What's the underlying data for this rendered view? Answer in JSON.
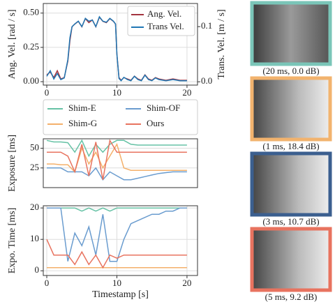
{
  "chart_data": [
    {
      "type": "line",
      "ylabel": "Ang. Vel. [rad / s]",
      "y2label": "Trans. Vel. [m / s]",
      "x": [
        0,
        0.5,
        1,
        1.5,
        2,
        2.5,
        3,
        3.3,
        3.6,
        4,
        4.5,
        5,
        5.5,
        6,
        6.5,
        7,
        7.5,
        8,
        8.5,
        9,
        9.5,
        9.8,
        10,
        10.3,
        10.6,
        11,
        11.5,
        12,
        12.5,
        13,
        13.5,
        14,
        14.5,
        15,
        15.5,
        16,
        17,
        18,
        19,
        20
      ],
      "xlim": [
        -0.5,
        21.5
      ],
      "xticks": [
        0,
        10,
        20
      ],
      "ylim": [
        -0.025,
        0.57
      ],
      "yticks": [
        {
          "value": 0,
          "label": "0.00"
        },
        {
          "value": 0.25,
          "label": "0.25"
        },
        {
          "value": 0.5,
          "label": "0.50"
        }
      ],
      "y2lim": [
        -0.006,
        0.142
      ],
      "y2ticks": [
        {
          "value": 0,
          "label": "0.0"
        },
        0.1
      ],
      "grid": true,
      "legend": "upper right",
      "series": [
        {
          "name": "Ang. Vel.",
          "color": "#a3343f",
          "values": [
            0.05,
            0.07,
            0.03,
            0.08,
            0.02,
            0.03,
            0.15,
            0.3,
            0.4,
            0.42,
            0.44,
            0.4,
            0.46,
            0.43,
            0.45,
            0.4,
            0.47,
            0.44,
            0.43,
            0.46,
            0.44,
            0.42,
            0.2,
            0.03,
            0.01,
            0.03,
            0.02,
            0.01,
            0.04,
            0.02,
            0.01,
            0.05,
            0.02,
            0.01,
            0.03,
            0.02,
            0.01,
            0.02,
            0.01,
            0.01
          ]
        },
        {
          "name": "Trans Vel.",
          "color": "#1f77b4",
          "axis": "y2",
          "values": [
            0.01,
            0.02,
            0.005,
            0.015,
            0.004,
            0.007,
            0.04,
            0.08,
            0.1,
            0.105,
            0.11,
            0.1,
            0.115,
            0.11,
            0.112,
            0.1,
            0.118,
            0.11,
            0.108,
            0.115,
            0.11,
            0.105,
            0.05,
            0.006,
            0.002,
            0.008,
            0.004,
            0.002,
            0.01,
            0.004,
            0.002,
            0.012,
            0.004,
            0.002,
            0.007,
            0.004,
            0.002,
            0.004,
            0.002,
            0.002
          ]
        }
      ]
    },
    {
      "type": "line",
      "ylabel": "Exposure [ms]",
      "x": [
        0,
        1,
        2,
        3,
        4,
        5,
        6,
        7,
        8,
        9,
        10,
        11,
        12,
        13,
        14,
        15,
        16,
        17,
        18,
        19,
        20
      ],
      "xlim": [
        -0.5,
        21.5
      ],
      "ylim": [
        0,
        62
      ],
      "yticks": [
        25,
        50
      ],
      "grid": true,
      "legend": "above",
      "series": [
        {
          "name": "Shim-E",
          "color": "#66c2a5",
          "values": [
            60,
            58,
            58,
            57,
            45,
            60,
            40,
            55,
            45,
            55,
            60,
            60,
            55,
            54,
            54,
            54,
            54,
            54,
            54,
            54,
            54
          ]
        },
        {
          "name": "Shim-OF",
          "color": "#6a9ccf",
          "values": [
            25,
            25,
            25,
            20,
            20,
            20,
            15,
            25,
            10,
            20,
            15,
            10,
            10,
            12,
            14,
            16,
            18,
            19,
            20,
            20,
            20
          ]
        },
        {
          "name": "Shim-G",
          "color": "#f4b06a",
          "values": [
            30,
            30,
            29,
            29,
            20,
            50,
            30,
            45,
            25,
            40,
            55,
            25,
            22,
            22,
            22,
            22,
            22,
            22,
            22,
            22,
            22
          ]
        },
        {
          "name": "Ours",
          "color": "#e8735f",
          "values": [
            45,
            45,
            45,
            40,
            20,
            55,
            15,
            58,
            10,
            60,
            45,
            45,
            45,
            45,
            45,
            45,
            45,
            45,
            45,
            45,
            45
          ]
        }
      ]
    },
    {
      "type": "line",
      "xlabel": "Timestamp [s]",
      "ylabel": "Expo. Time [ms]",
      "x": [
        0,
        1,
        2,
        3,
        4,
        5,
        6,
        7,
        8,
        9,
        10,
        11,
        12,
        13,
        14,
        15,
        16,
        17,
        18,
        19,
        20
      ],
      "xlim": [
        -0.5,
        21.5
      ],
      "xticks": [
        0,
        10,
        20
      ],
      "ylim": [
        -1.5,
        20.7
      ],
      "yticks": [
        0,
        10,
        20
      ],
      "grid": true,
      "series": [
        {
          "color": "#66c2a5",
          "values": [
            20,
            20,
            20,
            20,
            20,
            19,
            20,
            19,
            20,
            19,
            20,
            20,
            20,
            20,
            20,
            20,
            20,
            20,
            20,
            20,
            20
          ]
        },
        {
          "color": "#6a9ccf",
          "values": [
            20,
            20,
            20,
            3,
            12,
            8,
            14,
            5,
            18,
            3,
            3,
            10,
            15,
            16,
            17,
            18,
            18,
            19,
            19,
            20,
            20
          ]
        },
        {
          "color": "#f4b06a",
          "values": [
            1,
            1,
            1,
            1,
            1,
            1,
            1,
            1,
            1,
            1,
            1,
            1,
            1,
            1,
            1,
            1,
            1,
            1,
            1,
            1,
            1
          ]
        },
        {
          "color": "#e8735f",
          "values": [
            10,
            5,
            5,
            5,
            2,
            6,
            2,
            5,
            1,
            5,
            4,
            5,
            5,
            5,
            5,
            5,
            5,
            5,
            5,
            5,
            5
          ]
        }
      ]
    }
  ],
  "images": [
    {
      "caption": "(20 ms, 0.0 dB)",
      "border_color": "#7ac5b8"
    },
    {
      "caption": "(1 ms, 18.4 dB)",
      "border_color": "#f2b36e"
    },
    {
      "caption": "(3 ms, 10.7 dB)",
      "border_color": "#3b5f8f"
    },
    {
      "caption": "(5 ms, 9.2 dB)",
      "border_color": "#e8735f"
    }
  ]
}
